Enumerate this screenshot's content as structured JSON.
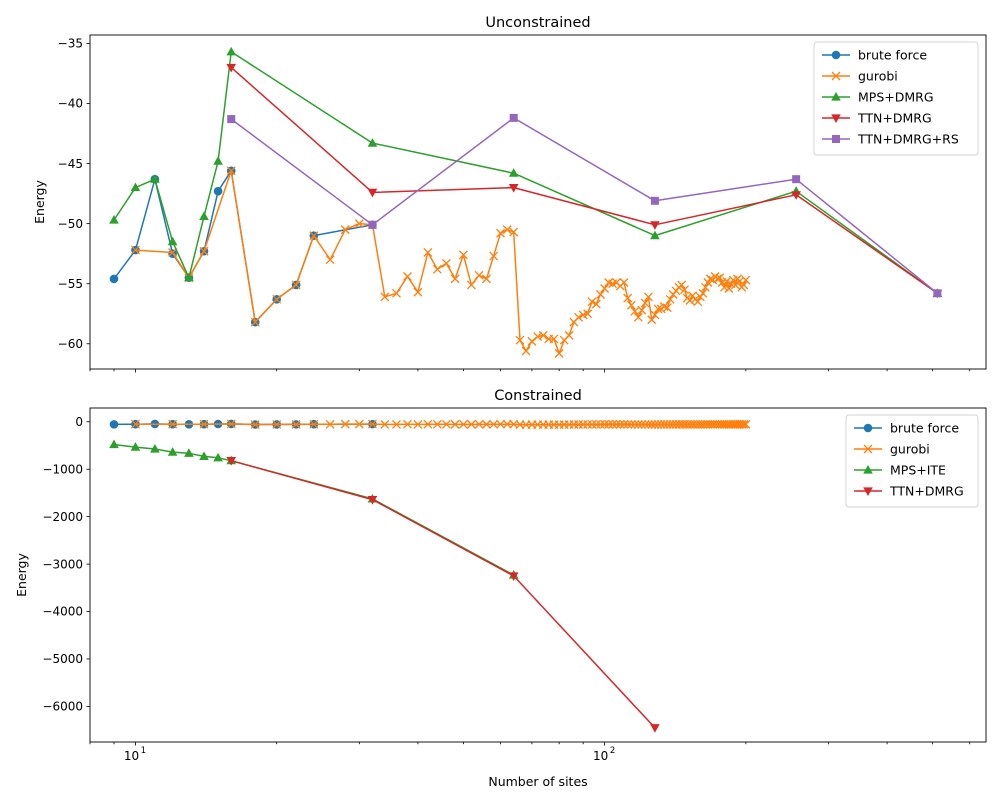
{
  "figure": {
    "xlabel": "Number of sites"
  },
  "chart_data": [
    {
      "type": "line",
      "title": "Unconstrained",
      "xlabel": "",
      "ylabel": "Energy",
      "xscale": "log",
      "xlim": [
        8,
        650
      ],
      "ylim": [
        -62.1,
        -34.3
      ],
      "xticks": [
        {
          "value": 10,
          "base": "10",
          "exp": "1"
        },
        {
          "value": 100,
          "base": "10",
          "exp": "2"
        }
      ],
      "yticks": [
        -60,
        -55,
        -50,
        -45,
        -40,
        -35
      ],
      "legend": "top-right",
      "series": [
        {
          "name": "brute force",
          "color": "#1f77b4",
          "marker": "circle",
          "x": [
            9,
            10,
            11,
            12,
            13,
            14,
            15,
            16,
            18,
            20,
            22,
            24,
            32
          ],
          "y": [
            -54.6,
            -52.2,
            -46.3,
            -52.5,
            -54.5,
            -52.3,
            -47.3,
            -45.6,
            -58.2,
            -56.3,
            -55.1,
            -51.0,
            -50.1
          ]
        },
        {
          "name": "gurobi",
          "color": "#ff7f0e",
          "marker": "x",
          "x": [
            10,
            12,
            13,
            14,
            16,
            18,
            20,
            22,
            24,
            26,
            28,
            30,
            32,
            34,
            36,
            38,
            40,
            42,
            44,
            46,
            48,
            50,
            52,
            54,
            56,
            58,
            60,
            62,
            64,
            66,
            68,
            70,
            72,
            74,
            76,
            78,
            80,
            82,
            84,
            86,
            88,
            90,
            92,
            94,
            96,
            98,
            100,
            102,
            104,
            106,
            108,
            110,
            112,
            114,
            116,
            118,
            120,
            122,
            124,
            126,
            128,
            130,
            132,
            134,
            136,
            138,
            140,
            142,
            144,
            146,
            148,
            150,
            152,
            154,
            156,
            158,
            160,
            162,
            164,
            166,
            168,
            170,
            172,
            174,
            176,
            178,
            180,
            182,
            184,
            186,
            188,
            190,
            192,
            194,
            196,
            198,
            200
          ],
          "y": [
            -52.2,
            -52.4,
            -54.5,
            -52.3,
            -45.6,
            -58.2,
            -56.3,
            -55.1,
            -51.0,
            -53.0,
            -50.5,
            -50.0,
            -50.1,
            -56.1,
            -55.8,
            -54.4,
            -55.7,
            -52.4,
            -53.8,
            -53.3,
            -54.6,
            -52.6,
            -55.1,
            -54.3,
            -54.6,
            -52.7,
            -50.8,
            -50.5,
            -50.7,
            -59.7,
            -60.6,
            -59.8,
            -59.4,
            -59.3,
            -59.6,
            -59.6,
            -60.8,
            -59.7,
            -59.3,
            -58.2,
            -57.8,
            -57.6,
            -57.5,
            -56.5,
            -56.7,
            -55.9,
            -55.4,
            -54.9,
            -55.0,
            -54.9,
            -55.2,
            -54.9,
            -56.2,
            -56.8,
            -57.3,
            -57.8,
            -57.2,
            -56.6,
            -56.1,
            -58.0,
            -57.6,
            -57.1,
            -57.1,
            -56.9,
            -57.0,
            -56.3,
            -55.9,
            -55.6,
            -55.3,
            -55.1,
            -55.5,
            -56.2,
            -56.4,
            -56.0,
            -56.3,
            -56.5,
            -56.1,
            -55.8,
            -55.3,
            -54.9,
            -54.6,
            -54.7,
            -54.4,
            -54.6,
            -54.5,
            -54.9,
            -55.3,
            -54.8,
            -55.4,
            -55.0,
            -54.7,
            -55.1,
            -54.6,
            -54.8,
            -55.3,
            -55.1,
            -54.7
          ]
        },
        {
          "name": "MPS+DMRG",
          "color": "#2ca02c",
          "marker": "triangle-up",
          "x": [
            9,
            10,
            11,
            12,
            13,
            14,
            15,
            16,
            32,
            64,
            128,
            256,
            512
          ],
          "y": [
            -49.7,
            -47.0,
            -46.3,
            -51.5,
            -54.5,
            -49.4,
            -44.8,
            -35.7,
            -43.3,
            -45.8,
            -51.0,
            -47.3,
            -55.8
          ]
        },
        {
          "name": "TTN+DMRG",
          "color": "#d62728",
          "marker": "triangle-down",
          "x": [
            16,
            32,
            64,
            128,
            256,
            512
          ],
          "y": [
            -37.0,
            -47.4,
            -47.0,
            -50.1,
            -47.6,
            -55.8
          ]
        },
        {
          "name": "TTN+DMRG+RS",
          "color": "#9467bd",
          "marker": "square",
          "x": [
            16,
            32,
            64,
            128,
            256,
            512
          ],
          "y": [
            -41.3,
            -50.1,
            -41.2,
            -48.1,
            -46.3,
            -55.8
          ]
        }
      ]
    },
    {
      "type": "line",
      "title": "Constrained",
      "xlabel": "Number of sites",
      "ylabel": "Energy",
      "xscale": "log",
      "xlim": [
        8,
        650
      ],
      "ylim": [
        -6750,
        290
      ],
      "xticks": [
        {
          "value": 10,
          "base": "10",
          "exp": "1"
        },
        {
          "value": 100,
          "base": "10",
          "exp": "2"
        }
      ],
      "yticks": [
        -6000,
        -5000,
        -4000,
        -3000,
        -2000,
        -1000,
        0
      ],
      "legend": "top-right",
      "series": [
        {
          "name": "brute force",
          "color": "#1f77b4",
          "marker": "circle",
          "x": [
            9,
            10,
            11,
            12,
            13,
            14,
            15,
            16,
            18,
            20,
            22,
            24,
            32
          ],
          "y": [
            -55,
            -52,
            -46,
            -52,
            -54,
            -52,
            -47,
            -46,
            -58,
            -56,
            -55,
            -51,
            -50
          ]
        },
        {
          "name": "gurobi",
          "color": "#ff7f0e",
          "marker": "x",
          "x": [
            10,
            12,
            14,
            16,
            18,
            20,
            22,
            24,
            26,
            28,
            30,
            32,
            34,
            36,
            38,
            40,
            42,
            44,
            46,
            48,
            50,
            52,
            54,
            56,
            58,
            60,
            62,
            64,
            66,
            68,
            70,
            72,
            74,
            76,
            78,
            80,
            82,
            84,
            86,
            88,
            90,
            92,
            94,
            96,
            98,
            100,
            102,
            104,
            106,
            108,
            110,
            112,
            114,
            116,
            118,
            120,
            122,
            124,
            126,
            128,
            130,
            132,
            134,
            136,
            138,
            140,
            142,
            144,
            146,
            148,
            150,
            152,
            154,
            156,
            158,
            160,
            162,
            164,
            166,
            168,
            170,
            172,
            174,
            176,
            178,
            180,
            182,
            184,
            186,
            188,
            190,
            192,
            194,
            196,
            198,
            200
          ],
          "y": [
            -52,
            -52,
            -52,
            -46,
            -58,
            -56,
            -55,
            -51,
            -53,
            -50,
            -50,
            -50,
            -56,
            -56,
            -54,
            -56,
            -52,
            -54,
            -53,
            -55,
            -53,
            -55,
            -54,
            -55,
            -53,
            -51,
            -51,
            -51,
            -60,
            -61,
            -60,
            -59,
            -59,
            -60,
            -60,
            -61,
            -60,
            -59,
            -58,
            -58,
            -58,
            -57,
            -57,
            -57,
            -56,
            -55,
            -55,
            -55,
            -55,
            -55,
            -55,
            -56,
            -57,
            -57,
            -58,
            -57,
            -57,
            -56,
            -58,
            -58,
            -57,
            -57,
            -57,
            -57,
            -56,
            -56,
            -56,
            -55,
            -55,
            -55,
            -56,
            -56,
            -56,
            -56,
            -56,
            -56,
            -56,
            -55,
            -55,
            -55,
            -55,
            -54,
            -55,
            -54,
            -55,
            -55,
            -55,
            -55,
            -55,
            -55,
            -55,
            -55,
            -55,
            -55,
            -55,
            -55
          ]
        },
        {
          "name": "MPS+ITE",
          "color": "#2ca02c",
          "marker": "triangle-up",
          "x": [
            9,
            10,
            11,
            12,
            13,
            14,
            15,
            16,
            32,
            64
          ],
          "y": [
            -480,
            -535,
            -575,
            -640,
            -665,
            -730,
            -760,
            -820,
            -1625,
            -3230
          ]
        },
        {
          "name": "TTN+DMRG",
          "color": "#d62728",
          "marker": "triangle-down",
          "x": [
            16,
            32,
            64,
            128
          ],
          "y": [
            -820,
            -1640,
            -3250,
            -6450
          ]
        }
      ]
    }
  ]
}
